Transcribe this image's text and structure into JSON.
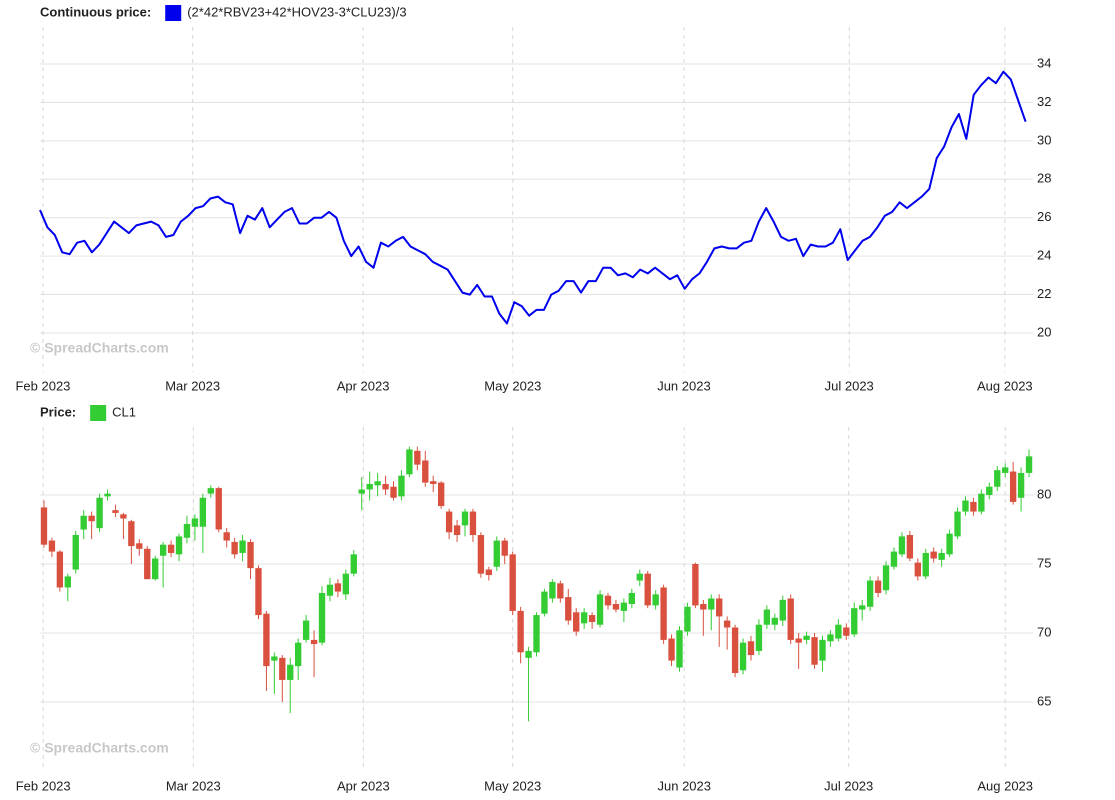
{
  "chart_data": [
    {
      "type": "line",
      "legend_title": "Continuous price:",
      "watermark": "© SpreadCharts.com",
      "series": [
        {
          "name": "(2*42*RBV23+42*HOV23-3*CLU23)/3",
          "color": "#0000ee",
          "values": [
            26.4,
            25.5,
            25.1,
            24.2,
            24.1,
            24.7,
            24.8,
            24.2,
            24.6,
            25.2,
            25.8,
            25.5,
            25.2,
            25.6,
            25.7,
            25.8,
            25.6,
            25.0,
            25.1,
            25.8,
            26.1,
            26.5,
            26.6,
            27.0,
            27.1,
            26.8,
            26.7,
            25.2,
            26.1,
            25.9,
            26.5,
            25.5,
            25.9,
            26.3,
            26.5,
            25.7,
            25.7,
            26.0,
            26.0,
            26.3,
            26.0,
            24.8,
            24.0,
            24.5,
            23.7,
            23.4,
            24.7,
            24.5,
            24.8,
            25.0,
            24.5,
            24.3,
            24.1,
            23.7,
            23.5,
            23.3,
            22.7,
            22.1,
            22.0,
            22.5,
            21.9,
            21.9,
            21.0,
            20.5,
            21.6,
            21.4,
            20.9,
            21.2,
            21.2,
            22.0,
            22.2,
            22.7,
            22.7,
            22.1,
            22.7,
            22.7,
            23.4,
            23.4,
            23.0,
            23.1,
            22.9,
            23.3,
            23.1,
            23.4,
            23.1,
            22.8,
            23.0,
            22.3,
            22.8,
            23.1,
            23.7,
            24.4,
            24.5,
            24.4,
            24.4,
            24.7,
            24.8,
            25.8,
            26.5,
            25.8,
            25.0,
            24.8,
            24.9,
            24.0,
            24.6,
            24.5,
            24.5,
            24.7,
            25.4,
            23.8,
            24.3,
            24.8,
            25.0,
            25.5,
            26.1,
            26.3,
            26.8,
            26.5,
            26.8,
            27.1,
            27.5,
            29.1,
            29.7,
            30.7,
            31.4,
            30.1,
            32.4,
            32.9,
            33.3,
            33.0,
            33.6,
            33.2,
            32.1,
            31.0
          ]
        }
      ],
      "xlim": [
        0,
        134
      ],
      "xticks": [
        {
          "value": 0.4,
          "label": "Feb 2023"
        },
        {
          "value": 20.6,
          "label": "Mar 2023"
        },
        {
          "value": 43.6,
          "label": "Apr 2023"
        },
        {
          "value": 63.8,
          "label": "May 2023"
        },
        {
          "value": 86.9,
          "label": "Jun 2023"
        },
        {
          "value": 109.2,
          "label": "Jul 2023"
        },
        {
          "value": 130.2,
          "label": "Aug 2023"
        }
      ],
      "ylim": [
        18,
        36
      ],
      "yticks": [
        20,
        22,
        24,
        26,
        28,
        30,
        32,
        34
      ],
      "grid": true
    },
    {
      "type": "candlestick",
      "legend_title": "Price:",
      "watermark": "© SpreadCharts.com",
      "down_color": "#d9503f",
      "series": [
        {
          "name": "CL1",
          "color": "#33cc33",
          "open": [
            79.1,
            76.7,
            75.9,
            73.3,
            74.6,
            77.5,
            78.5,
            77.6,
            79.9,
            78.9,
            78.6,
            78.1,
            76.5,
            76.1,
            73.9,
            75.6,
            76.4,
            75.7,
            76.9,
            77.7,
            77.7,
            80.1,
            80.5,
            77.3,
            76.6,
            75.8,
            76.6,
            74.7,
            71.4,
            68.0,
            68.2,
            66.6,
            67.6,
            69.5,
            69.5,
            69.3,
            72.7,
            73.6,
            72.8,
            74.3,
            80.1,
            80.4,
            80.7,
            80.8,
            80.6,
            79.9,
            81.5,
            83.2,
            82.5,
            81.0,
            80.9,
            78.8,
            77.8,
            77.8,
            78.8,
            77.1,
            74.6,
            74.8,
            76.7,
            75.7,
            71.6,
            68.2,
            68.6,
            71.4,
            72.5,
            73.6,
            72.6,
            71.5,
            70.7,
            71.3,
            70.6,
            72.7,
            72.1,
            71.6,
            72.1,
            73.8,
            74.3,
            72.0,
            73.3,
            69.6,
            67.5,
            70.1,
            75.0,
            72.1,
            71.7,
            72.5,
            70.9,
            70.4,
            67.3,
            69.4,
            68.7,
            70.6,
            70.6,
            70.9,
            72.5,
            69.6,
            69.5,
            69.7,
            68.0,
            69.4,
            69.6,
            70.4,
            69.9,
            71.7,
            71.9,
            73.8,
            73.1,
            74.8,
            75.7,
            77.1,
            75.1,
            74.1,
            75.9,
            75.3,
            75.7,
            77.0,
            78.8,
            79.5,
            78.8,
            80.0,
            80.6,
            81.6,
            81.7,
            79.8,
            81.6
          ],
          "high": [
            79.6,
            76.9,
            76.0,
            74.3,
            77.4,
            78.9,
            78.8,
            80.1,
            80.4,
            79.3,
            78.7,
            78.2,
            76.8,
            76.3,
            75.6,
            76.6,
            76.7,
            77.2,
            78.5,
            78.6,
            80.1,
            80.7,
            80.6,
            77.6,
            76.9,
            77.1,
            76.8,
            74.9,
            71.6,
            68.6,
            68.4,
            68.2,
            69.6,
            71.3,
            70.2,
            73.4,
            74.0,
            73.9,
            74.6,
            76.0,
            81.3,
            81.7,
            81.6,
            81.4,
            81.0,
            81.8,
            83.5,
            83.5,
            83.2,
            81.4,
            81.0,
            79.0,
            78.2,
            79.0,
            79.0,
            77.3,
            74.8,
            77.0,
            76.9,
            75.9,
            71.9,
            69.0,
            71.5,
            73.2,
            73.9,
            73.8,
            73.2,
            71.8,
            71.8,
            71.5,
            73.1,
            72.9,
            72.4,
            72.5,
            73.2,
            74.6,
            74.5,
            73.1,
            73.5,
            69.9,
            70.5,
            72.2,
            75.1,
            72.4,
            72.8,
            72.8,
            71.2,
            70.6,
            69.6,
            69.8,
            71.0,
            72.0,
            71.4,
            72.7,
            72.8,
            70.0,
            70.1,
            70.0,
            69.8,
            70.2,
            71.0,
            70.7,
            72.2,
            72.4,
            74.1,
            74.1,
            75.2,
            76.2,
            77.3,
            77.4,
            75.4,
            76.1,
            76.2,
            76.1,
            77.5,
            79.1,
            79.9,
            79.8,
            80.4,
            80.9,
            82.1,
            82.3,
            82.4,
            82.0,
            83.3
          ],
          "low": [
            76.2,
            75.5,
            73.0,
            72.3,
            74.3,
            76.8,
            76.8,
            77.3,
            79.6,
            78.4,
            76.8,
            75.0,
            75.6,
            73.9,
            73.8,
            73.3,
            75.5,
            75.2,
            76.5,
            76.7,
            75.8,
            79.8,
            77.3,
            76.2,
            75.4,
            75.2,
            73.9,
            71.0,
            65.8,
            65.6,
            65.0,
            64.2,
            66.6,
            69.3,
            66.8,
            69.1,
            72.3,
            72.6,
            72.4,
            74.1,
            78.9,
            79.6,
            79.9,
            80.0,
            79.6,
            79.6,
            81.3,
            81.8,
            80.6,
            80.2,
            79.0,
            76.8,
            76.6,
            77.0,
            76.6,
            74.0,
            73.8,
            74.5,
            75.0,
            71.3,
            67.8,
            63.6,
            68.3,
            71.2,
            72.2,
            72.2,
            70.6,
            69.8,
            70.3,
            70.3,
            70.4,
            71.7,
            71.5,
            70.8,
            71.8,
            73.4,
            71.8,
            71.7,
            69.2,
            67.6,
            67.2,
            69.8,
            71.8,
            69.8,
            70.2,
            69.0,
            68.8,
            66.8,
            67.0,
            68.0,
            68.4,
            70.3,
            70.2,
            70.5,
            69.2,
            67.4,
            69.2,
            67.4,
            67.2,
            69.0,
            69.4,
            69.5,
            69.7,
            70.9,
            71.6,
            72.6,
            72.8,
            74.6,
            75.5,
            75.2,
            73.8,
            73.9,
            75.1,
            74.8,
            75.5,
            76.8,
            78.5,
            78.5,
            78.6,
            79.7,
            80.3,
            81.3,
            79.3,
            78.8,
            81.3
          ],
          "close": [
            76.4,
            75.9,
            73.3,
            74.1,
            77.1,
            78.5,
            78.1,
            79.8,
            80.1,
            78.7,
            78.3,
            76.3,
            76.1,
            73.9,
            75.4,
            76.4,
            75.8,
            77.0,
            77.9,
            78.3,
            79.8,
            80.5,
            77.5,
            76.7,
            75.7,
            76.7,
            74.7,
            71.3,
            67.6,
            68.3,
            66.6,
            67.7,
            69.3,
            70.9,
            69.2,
            72.9,
            73.5,
            73.0,
            74.3,
            75.7,
            80.4,
            80.8,
            81.0,
            80.4,
            79.8,
            81.4,
            83.3,
            82.2,
            80.9,
            80.8,
            79.2,
            77.3,
            77.1,
            78.8,
            77.1,
            74.3,
            74.2,
            76.7,
            75.6,
            71.6,
            68.6,
            68.7,
            71.3,
            73.0,
            73.7,
            72.5,
            70.9,
            70.1,
            71.5,
            70.8,
            72.8,
            72.0,
            71.7,
            72.2,
            72.9,
            74.3,
            72.0,
            72.8,
            69.5,
            68.0,
            70.2,
            71.9,
            72.0,
            71.7,
            72.5,
            71.2,
            70.4,
            67.1,
            69.3,
            68.4,
            70.6,
            71.7,
            71.1,
            72.4,
            69.5,
            69.3,
            69.8,
            67.7,
            69.5,
            69.9,
            70.6,
            69.8,
            71.8,
            72.0,
            73.8,
            72.9,
            74.9,
            75.9,
            77.0,
            75.4,
            74.1,
            75.8,
            75.4,
            75.8,
            77.2,
            78.8,
            79.6,
            78.8,
            80.1,
            80.6,
            81.8,
            82.0,
            79.5,
            81.6,
            82.8
          ]
        }
      ],
      "xlim": [
        -0.5,
        124.5
      ],
      "xticks": [
        {
          "value": -0.1,
          "label": "Feb 2023"
        },
        {
          "value": 18.8,
          "label": "Mar 2023"
        },
        {
          "value": 40.2,
          "label": "Apr 2023"
        },
        {
          "value": 59.0,
          "label": "May 2023"
        },
        {
          "value": 80.6,
          "label": "Jun 2023"
        },
        {
          "value": 101.3,
          "label": "Jul 2023"
        },
        {
          "value": 121.0,
          "label": "Aug 2023"
        }
      ],
      "ylim": [
        60,
        85
      ],
      "yticks": [
        65,
        70,
        75,
        80
      ],
      "grid": true
    }
  ]
}
